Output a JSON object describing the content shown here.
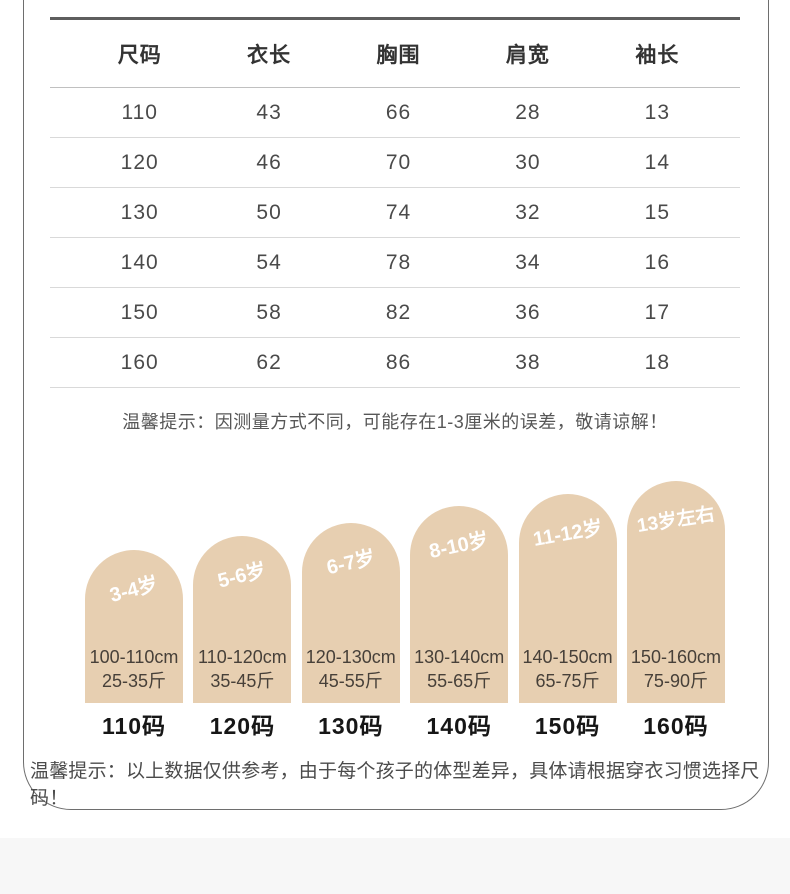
{
  "size_table": {
    "columns": [
      "尺码",
      "衣长",
      "胸围",
      "肩宽",
      "袖长"
    ],
    "rows": [
      [
        "110",
        "43",
        "66",
        "28",
        "13"
      ],
      [
        "120",
        "46",
        "70",
        "30",
        "14"
      ],
      [
        "130",
        "50",
        "74",
        "32",
        "15"
      ],
      [
        "140",
        "54",
        "78",
        "34",
        "16"
      ],
      [
        "150",
        "58",
        "82",
        "36",
        "17"
      ],
      [
        "160",
        "62",
        "86",
        "38",
        "18"
      ]
    ]
  },
  "notes": {
    "measure_note": "温馨提示：因测量方式不同，可能存在1-3厘米的误差，敬请谅解！",
    "reference_note": "温馨提示：以上数据仅供参考，由于每个孩子的体型差异，具体请根据穿衣习惯选择尺码！"
  },
  "age_guide": {
    "items": [
      {
        "age": "3-4岁",
        "height": "100-110cm",
        "weight": "25-35斤",
        "size": "110码"
      },
      {
        "age": "5-6岁",
        "height": "110-120cm",
        "weight": "35-45斤",
        "size": "120码"
      },
      {
        "age": "6-7岁",
        "height": "120-130cm",
        "weight": "45-55斤",
        "size": "130码"
      },
      {
        "age": "8-10岁",
        "height": "130-140cm",
        "weight": "55-65斤",
        "size": "140码"
      },
      {
        "age": "11-12岁",
        "height": "140-150cm",
        "weight": "65-75斤",
        "size": "150码"
      },
      {
        "age": "13岁左右",
        "height": "150-160cm",
        "weight": "75-90斤",
        "size": "160码"
      }
    ]
  },
  "colors": {
    "arch_fill": "#e7cfb1",
    "age_text": "#ffffff",
    "table_text": "#4a4a4a",
    "border": "#6e6e6e",
    "footer_strip": "#f7f7f7"
  }
}
